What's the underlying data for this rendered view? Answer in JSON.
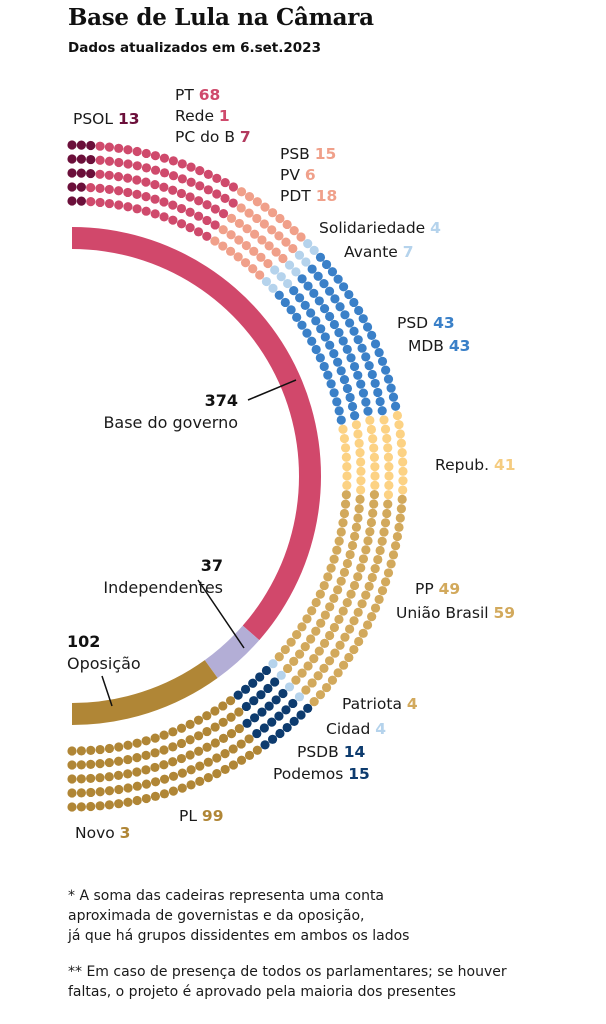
{
  "header": {
    "title": "Base de Lula na Câmara",
    "subtitle": "Dados atualizados em 6.set.2023"
  },
  "chart_data": {
    "type": "parliament",
    "title": "Base de Lula na Câmara",
    "subtitle": "Dados atualizados em 6.set.2023",
    "total_seats": 513,
    "rows": 5,
    "parties": [
      {
        "name": "PSOL",
        "seats": 13,
        "color": "#6b0f3a",
        "group": "Base do governo"
      },
      {
        "name": "PT",
        "seats": 68,
        "color": "#cf4a6c",
        "group": "Base do governo"
      },
      {
        "name": "Rede",
        "seats": 1,
        "color": "#cf4a6c",
        "group": "Base do governo"
      },
      {
        "name": "PC do B",
        "seats": 7,
        "color": "#cf4a6c",
        "group": "Base do governo"
      },
      {
        "name": "PSB",
        "seats": 15,
        "color": "#f0a08a",
        "group": "Base do governo"
      },
      {
        "name": "PV",
        "seats": 6,
        "color": "#f0a08a",
        "group": "Base do governo"
      },
      {
        "name": "PDT",
        "seats": 18,
        "color": "#f0a08a",
        "group": "Base do governo"
      },
      {
        "name": "Solidariedade",
        "seats": 4,
        "color": "#b5d3ec",
        "group": "Base do governo"
      },
      {
        "name": "Avante",
        "seats": 7,
        "color": "#b5d3ec",
        "group": "Base do governo"
      },
      {
        "name": "PSD",
        "seats": 43,
        "color": "#3a80c8",
        "group": "Base do governo"
      },
      {
        "name": "MDB",
        "seats": 43,
        "color": "#3a80c8",
        "group": "Base do governo"
      },
      {
        "name": "Repub.",
        "seats": 41,
        "color": "#fcd284",
        "group": "Base do governo"
      },
      {
        "name": "PP",
        "seats": 49,
        "color": "#d2a95c",
        "group": "Base do governo"
      },
      {
        "name": "União Brasil",
        "seats": 59,
        "color": "#d2a95c",
        "group": "Base do governo"
      },
      {
        "name": "Patriota",
        "seats": 4,
        "color": "#d2a95c",
        "group": "Independentes"
      },
      {
        "name": "Cidad",
        "seats": 4,
        "color": "#b5d3ec",
        "group": "Independentes"
      },
      {
        "name": "PSDB",
        "seats": 14,
        "color": "#0d3b6e",
        "group": "Independentes"
      },
      {
        "name": "Podemos",
        "seats": 15,
        "color": "#0d3b6e",
        "group": "Independentes"
      },
      {
        "name": "PL",
        "seats": 99,
        "color": "#b08636",
        "group": "Oposição"
      },
      {
        "name": "Novo",
        "seats": 3,
        "color": "#b08636",
        "group": "Oposição"
      }
    ],
    "party_labels": [
      {
        "text": "PSOL",
        "value": "13",
        "value_color": "#6b0f3a"
      },
      {
        "text": "PT",
        "value": "68",
        "value_color": "#cf4a6c"
      },
      {
        "text": "Rede",
        "value": "1",
        "value_color": "#cf4a6c"
      },
      {
        "text": "PC do B",
        "value": "7",
        "value_color": "#b23a5e"
      },
      {
        "text": "PSB",
        "value": "15",
        "value_color": "#f0a08a"
      },
      {
        "text": "PV",
        "value": "6",
        "value_color": "#f0a08a"
      },
      {
        "text": "PDT",
        "value": "18",
        "value_color": "#f0a08a"
      },
      {
        "text": "Solidariedade",
        "value": "4",
        "value_color": "#b5d3ec"
      },
      {
        "text": "Avante",
        "value": "7",
        "value_color": "#b5d3ec"
      },
      {
        "text": "PSD",
        "value": "43",
        "value_color": "#3a80c8"
      },
      {
        "text": "MDB",
        "value": "43",
        "value_color": "#3a80c8"
      },
      {
        "text": "Repub.",
        "value": "41",
        "value_color": "#f5cc80"
      },
      {
        "text": "PP",
        "value": "49",
        "value_color": "#d2a95c"
      },
      {
        "text": "União Brasil",
        "value": "59",
        "value_color": "#d2a95c"
      },
      {
        "text": "Patriota",
        "value": "4",
        "value_color": "#d2a95c"
      },
      {
        "text": "Cidad",
        "value": "4",
        "value_color": "#b5d3ec"
      },
      {
        "text": "PSDB",
        "value": "14",
        "value_color": "#0d3b6e"
      },
      {
        "text": "Podemos",
        "value": "15",
        "value_color": "#0d3b6e"
      },
      {
        "text": "PL",
        "value": "99",
        "value_color": "#b08636"
      },
      {
        "text": "Novo",
        "value": "3",
        "value_color": "#b08636"
      }
    ],
    "groups": [
      {
        "name": "Base do governo",
        "seats": 374,
        "color": "#d1486b"
      },
      {
        "name": "Independentes",
        "seats": 37,
        "color": "#b3aed6"
      },
      {
        "name": "Oposição",
        "seats": 102,
        "color": "#b08636"
      }
    ]
  },
  "notes": [
    "* A soma das cadeiras representa uma conta\naproximada de governistas e da oposição,\njá que há grupos dissidentes em ambos os lados",
    "** Em caso de presença de todos os parlamentares; se houver\nfaltas, o projeto é aprovado pela maioria dos presentes"
  ]
}
